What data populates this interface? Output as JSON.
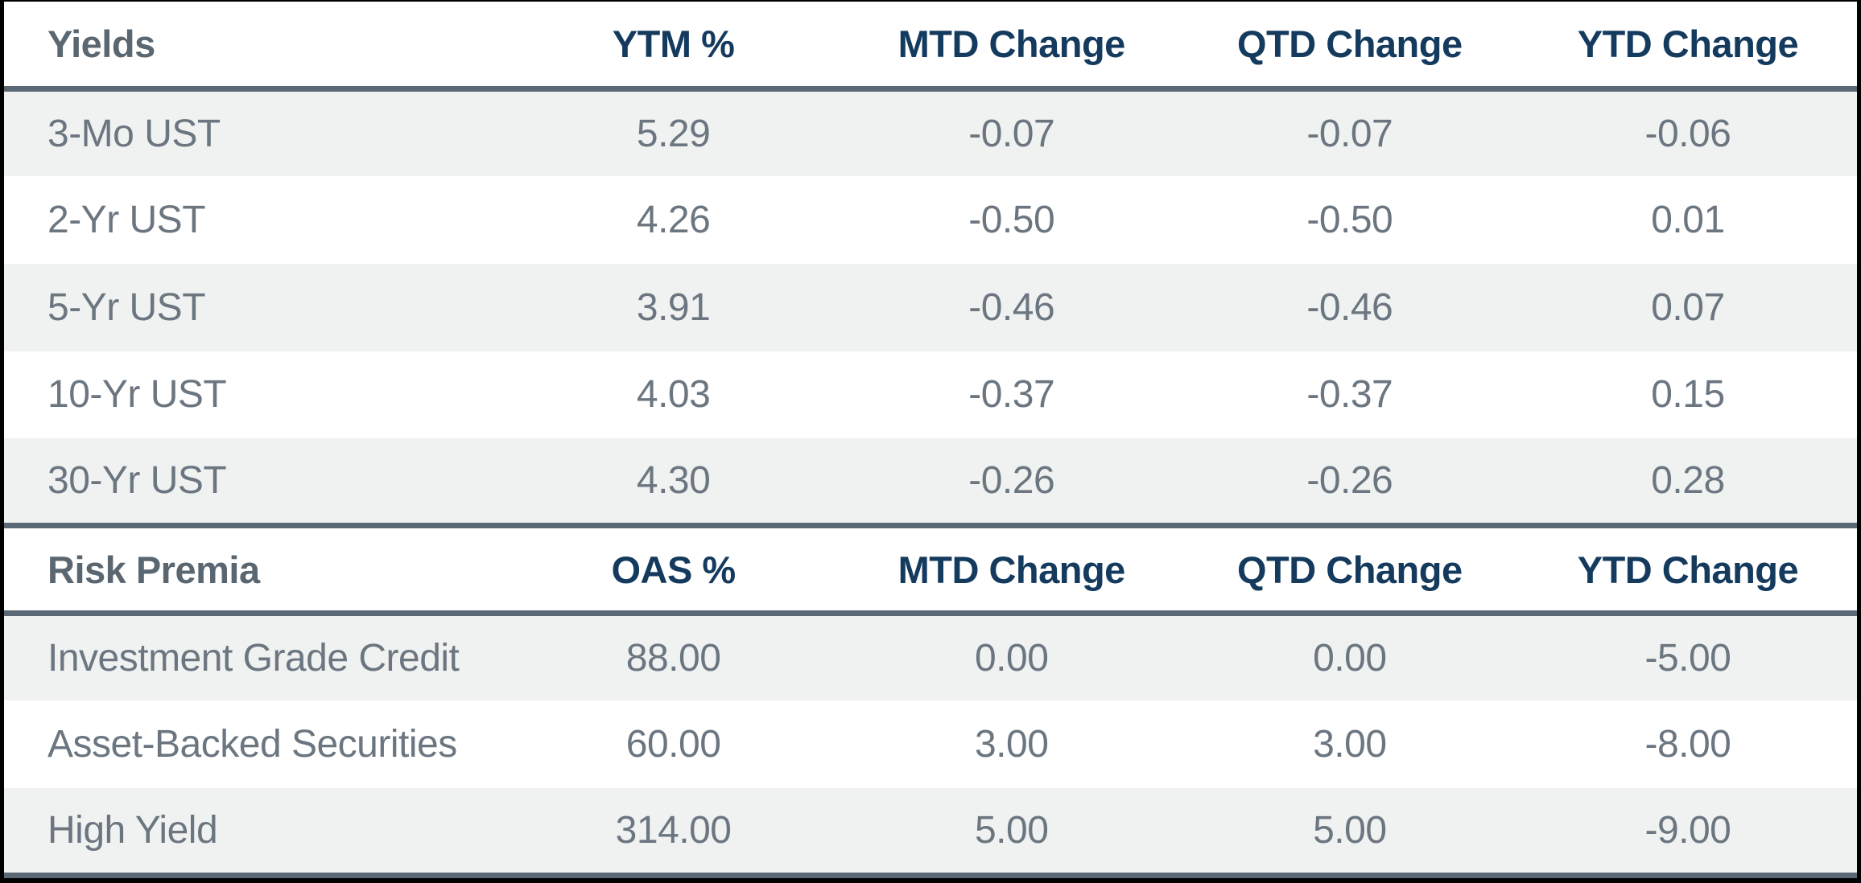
{
  "colors": {
    "navy": "#143A5E",
    "slate_label": "#5A6771",
    "body_text": "#6B7680",
    "row_alt_bg": "#F0F1F1",
    "divider": "#5A6975",
    "frame": "#000000"
  },
  "chart_data": {
    "type": "table",
    "sections": [
      {
        "label": "Yields",
        "value_header": "YTM %",
        "mtd_header": "MTD Change",
        "qtd_header": "QTD Change",
        "ytd_header": "YTD Change",
        "rows": [
          {
            "label": "3-Mo UST",
            "value": "5.29",
            "mtd": "-0.07",
            "qtd": "-0.07",
            "ytd": "-0.06"
          },
          {
            "label": "2-Yr UST",
            "value": "4.26",
            "mtd": "-0.50",
            "qtd": "-0.50",
            "ytd": "0.01"
          },
          {
            "label": "5-Yr UST",
            "value": "3.91",
            "mtd": "-0.46",
            "qtd": "-0.46",
            "ytd": "0.07"
          },
          {
            "label": "10-Yr UST",
            "value": "4.03",
            "mtd": "-0.37",
            "qtd": "-0.37",
            "ytd": "0.15"
          },
          {
            "label": "30-Yr UST",
            "value": "4.30",
            "mtd": "-0.26",
            "qtd": "-0.26",
            "ytd": "0.28"
          }
        ]
      },
      {
        "label": "Risk Premia",
        "value_header": "OAS %",
        "mtd_header": "MTD Change",
        "qtd_header": "QTD Change",
        "ytd_header": "YTD Change",
        "rows": [
          {
            "label": "Investment Grade Credit",
            "value": "88.00",
            "mtd": "0.00",
            "qtd": "0.00",
            "ytd": "-5.00"
          },
          {
            "label": "Asset-Backed Securities",
            "value": "60.00",
            "mtd": "3.00",
            "qtd": "3.00",
            "ytd": "-8.00"
          },
          {
            "label": "High Yield",
            "value": "314.00",
            "mtd": "5.00",
            "qtd": "5.00",
            "ytd": "-9.00"
          }
        ]
      }
    ]
  }
}
